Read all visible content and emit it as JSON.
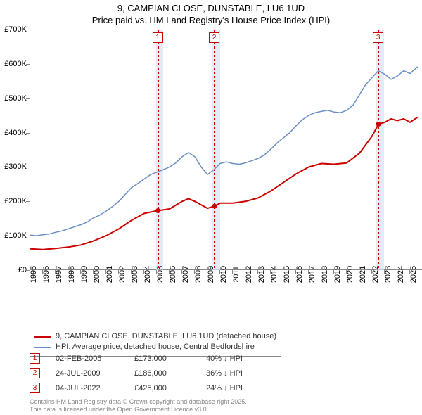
{
  "title_line1": "9, CAMPIAN CLOSE, DUNSTABLE, LU6 1UD",
  "title_line2": "Price paid vs. HM Land Registry's House Price Index (HPI)",
  "chart": {
    "type": "line",
    "x_year_min": 1995,
    "x_year_max": 2026,
    "y_min": 0,
    "y_max": 700000,
    "y_step": 100000,
    "y_prefix": "£",
    "y_suffix": "K",
    "x_ticks": [
      1995,
      1996,
      1997,
      1998,
      1999,
      2000,
      2001,
      2002,
      2003,
      2004,
      2005,
      2006,
      2007,
      2008,
      2009,
      2010,
      2011,
      2012,
      2013,
      2014,
      2015,
      2016,
      2017,
      2018,
      2019,
      2020,
      2021,
      2022,
      2023,
      2024,
      2025
    ],
    "background_color": "#ffffff",
    "band_color": "#d9e3f0",
    "series": [
      {
        "name": "price_paid",
        "label": "9, CAMPIAN CLOSE, DUNSTABLE, LU6 1UD (detached house)",
        "color": "#cc0000",
        "width": 2,
        "points": [
          [
            1995.0,
            62000
          ],
          [
            1996.0,
            60000
          ],
          [
            1997.0,
            63000
          ],
          [
            1998.0,
            67000
          ],
          [
            1999.0,
            73000
          ],
          [
            2000.0,
            85000
          ],
          [
            2001.0,
            100000
          ],
          [
            2002.0,
            120000
          ],
          [
            2003.0,
            145000
          ],
          [
            2004.0,
            165000
          ],
          [
            2004.9,
            172000
          ],
          [
            2005.09,
            173000
          ],
          [
            2006.0,
            178000
          ],
          [
            2007.0,
            200000
          ],
          [
            2007.5,
            208000
          ],
          [
            2008.0,
            200000
          ],
          [
            2009.0,
            180000
          ],
          [
            2009.56,
            186000
          ],
          [
            2010.0,
            195000
          ],
          [
            2011.0,
            195000
          ],
          [
            2012.0,
            200000
          ],
          [
            2013.0,
            210000
          ],
          [
            2014.0,
            230000
          ],
          [
            2015.0,
            255000
          ],
          [
            2016.0,
            280000
          ],
          [
            2017.0,
            300000
          ],
          [
            2018.0,
            310000
          ],
          [
            2019.0,
            308000
          ],
          [
            2020.0,
            312000
          ],
          [
            2021.0,
            340000
          ],
          [
            2022.0,
            390000
          ],
          [
            2022.51,
            425000
          ],
          [
            2023.0,
            430000
          ],
          [
            2023.5,
            440000
          ],
          [
            2024.0,
            435000
          ],
          [
            2024.5,
            440000
          ],
          [
            2025.0,
            430000
          ],
          [
            2025.6,
            445000
          ]
        ],
        "markers": [
          {
            "x": 2005.09,
            "y": 173000
          },
          {
            "x": 2009.56,
            "y": 186000
          },
          {
            "x": 2022.51,
            "y": 425000
          }
        ]
      },
      {
        "name": "hpi",
        "label": "HPI: Average price, detached house, Central Bedfordshire",
        "color": "#6b8fc4",
        "width": 1.5,
        "points": [
          [
            1995.0,
            102000
          ],
          [
            1995.5,
            100000
          ],
          [
            1996.0,
            103000
          ],
          [
            1996.5,
            105000
          ],
          [
            1997.0,
            110000
          ],
          [
            1997.5,
            114000
          ],
          [
            1998.0,
            120000
          ],
          [
            1998.5,
            126000
          ],
          [
            1999.0,
            132000
          ],
          [
            1999.5,
            140000
          ],
          [
            2000.0,
            152000
          ],
          [
            2000.5,
            160000
          ],
          [
            2001.0,
            172000
          ],
          [
            2001.5,
            185000
          ],
          [
            2002.0,
            200000
          ],
          [
            2002.5,
            220000
          ],
          [
            2003.0,
            240000
          ],
          [
            2003.5,
            252000
          ],
          [
            2004.0,
            265000
          ],
          [
            2004.5,
            278000
          ],
          [
            2005.0,
            285000
          ],
          [
            2005.5,
            292000
          ],
          [
            2006.0,
            300000
          ],
          [
            2006.5,
            312000
          ],
          [
            2007.0,
            330000
          ],
          [
            2007.5,
            342000
          ],
          [
            2008.0,
            330000
          ],
          [
            2008.5,
            300000
          ],
          [
            2009.0,
            278000
          ],
          [
            2009.5,
            292000
          ],
          [
            2010.0,
            310000
          ],
          [
            2010.5,
            315000
          ],
          [
            2011.0,
            310000
          ],
          [
            2011.5,
            308000
          ],
          [
            2012.0,
            312000
          ],
          [
            2012.5,
            318000
          ],
          [
            2013.0,
            325000
          ],
          [
            2013.5,
            335000
          ],
          [
            2014.0,
            352000
          ],
          [
            2014.5,
            370000
          ],
          [
            2015.0,
            385000
          ],
          [
            2015.5,
            400000
          ],
          [
            2016.0,
            420000
          ],
          [
            2016.5,
            438000
          ],
          [
            2017.0,
            450000
          ],
          [
            2017.5,
            458000
          ],
          [
            2018.0,
            462000
          ],
          [
            2018.5,
            465000
          ],
          [
            2019.0,
            460000
          ],
          [
            2019.5,
            458000
          ],
          [
            2020.0,
            465000
          ],
          [
            2020.5,
            480000
          ],
          [
            2021.0,
            510000
          ],
          [
            2021.5,
            540000
          ],
          [
            2022.0,
            560000
          ],
          [
            2022.5,
            580000
          ],
          [
            2023.0,
            570000
          ],
          [
            2023.5,
            555000
          ],
          [
            2024.0,
            565000
          ],
          [
            2024.5,
            580000
          ],
          [
            2025.0,
            572000
          ],
          [
            2025.6,
            592000
          ]
        ]
      }
    ],
    "sale_bands": [
      {
        "num": "1",
        "x": 2005.09,
        "width_years": 0.6
      },
      {
        "num": "2",
        "x": 2009.56,
        "width_years": 0.6
      },
      {
        "num": "3",
        "x": 2022.51,
        "width_years": 0.6
      }
    ]
  },
  "legend": {
    "series1_label": "9, CAMPIAN CLOSE, DUNSTABLE, LU6 1UD (detached house)",
    "series2_label": "HPI: Average price, detached house, Central Bedfordshire"
  },
  "sales": [
    {
      "num": "1",
      "date": "02-FEB-2005",
      "price": "£173,000",
      "diff": "40% ↓ HPI"
    },
    {
      "num": "2",
      "date": "24-JUL-2009",
      "price": "£186,000",
      "diff": "36% ↓ HPI"
    },
    {
      "num": "3",
      "date": "04-JUL-2022",
      "price": "£425,000",
      "diff": "24% ↓ HPI"
    }
  ],
  "footer_line1": "Contains HM Land Registry data © Crown copyright and database right 2025.",
  "footer_line2": "This data is licensed under the Open Government Licence v3.0."
}
